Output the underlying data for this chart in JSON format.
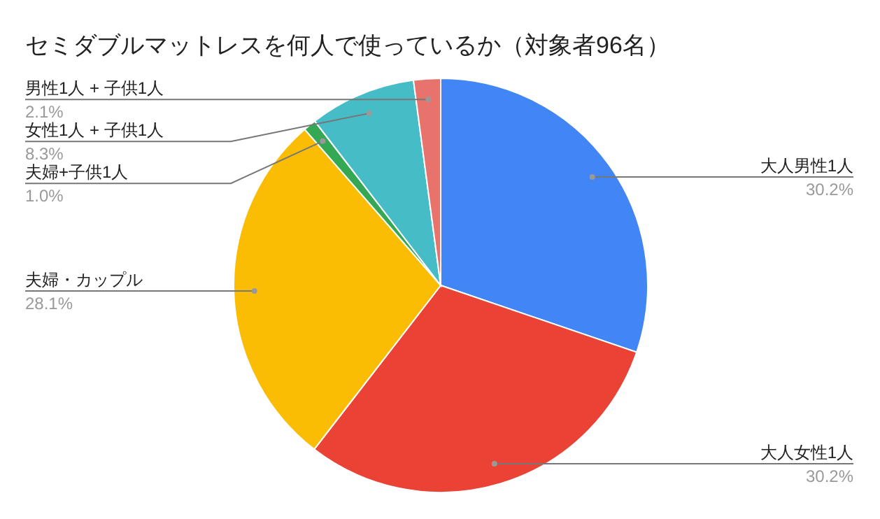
{
  "chart_data": {
    "type": "pie",
    "title": "セミダブルマットレスを何人で使っているか（対象者96名）",
    "categories": [
      "大人男性1人",
      "大人女性1人",
      "夫婦・カップル",
      "夫婦+子供1人",
      "女性1人 + 子供1人",
      "男性1人 + 子供1人"
    ],
    "values": [
      30.2,
      30.2,
      28.1,
      1.0,
      8.3,
      2.1
    ],
    "colors": [
      "#4285f4",
      "#ea4335",
      "#fbbc04",
      "#34a853",
      "#46bdc6",
      "#e8726c"
    ],
    "value_labels": [
      "30.2%",
      "30.2%",
      "28.1%",
      "1.0%",
      "8.3%",
      "2.1%"
    ]
  }
}
